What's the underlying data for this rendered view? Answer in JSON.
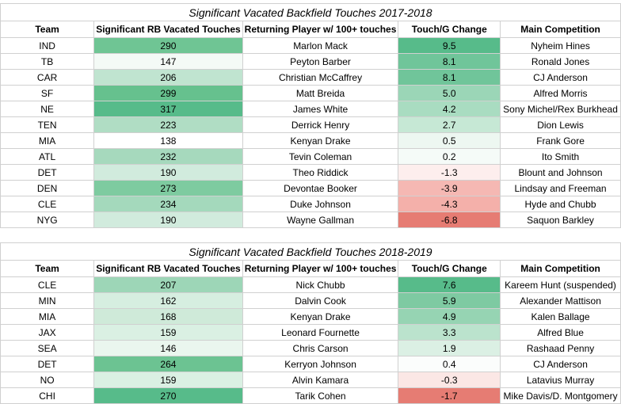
{
  "headers": [
    "Team",
    "Significant RB Vacated Touches",
    "Returning Player w/ 100+ touches",
    "Touch/G Change",
    "Main Competition"
  ],
  "tables": [
    {
      "title": "Significant Vacated Backfield Touches 2017-2018",
      "rows": [
        {
          "team": "IND",
          "vacated": "290",
          "player": "Marlon Mack",
          "change": "9.5",
          "competition": "Nyheim Hines",
          "vac_color": "#6fc594",
          "chg_color": "#57bb8a"
        },
        {
          "team": "TB",
          "vacated": "147",
          "player": "Peyton Barber",
          "change": "8.1",
          "competition": "Ronald Jones",
          "vac_color": "#f4faf6",
          "chg_color": "#70c59a"
        },
        {
          "team": "CAR",
          "vacated": "206",
          "player": "Christian McCaffrey",
          "change": "8.1",
          "competition": "CJ Anderson",
          "vac_color": "#c0e4d0",
          "chg_color": "#70c59a"
        },
        {
          "team": "SF",
          "vacated": "299",
          "player": "Matt Breida",
          "change": "5.0",
          "competition": "Alfred Morris",
          "vac_color": "#66c18e",
          "chg_color": "#9bd6b7"
        },
        {
          "team": "NE",
          "vacated": "317",
          "player": "James White",
          "change": "4.2",
          "competition": "Sony Michel/Rex Burkhead",
          "vac_color": "#57bb8a",
          "chg_color": "#a9dcc1"
        },
        {
          "team": "TEN",
          "vacated": "223",
          "player": "Derrick Henry",
          "change": "2.7",
          "competition": "Dion Lewis",
          "vac_color": "#b0ddc4",
          "chg_color": "#c6e8d5"
        },
        {
          "team": "MIA",
          "vacated": "138",
          "player": "Kenyan Drake",
          "change": "0.5",
          "competition": "Frank Gore",
          "vac_color": "#ffffff",
          "chg_color": "#edf7f1"
        },
        {
          "team": "ATL",
          "vacated": "232",
          "player": "Tevin Coleman",
          "change": "0.2",
          "competition": "Ito Smith",
          "vac_color": "#a6d9bd",
          "chg_color": "#f5fbf8"
        },
        {
          "team": "DET",
          "vacated": "190",
          "player": "Theo Riddick",
          "change": "-1.3",
          "competition": "Blount and Johnson",
          "vac_color": "#d1ebdd",
          "chg_color": "#fdeeed"
        },
        {
          "team": "DEN",
          "vacated": "273",
          "player": "Devontae Booker",
          "change": "-3.9",
          "competition": "Lindsay and Freeman",
          "vac_color": "#7ecba0",
          "chg_color": "#f5b8b3"
        },
        {
          "team": "CLE",
          "vacated": "234",
          "player": "Duke Johnson",
          "change": "-4.3",
          "competition": "Hyde and Chubb",
          "vac_color": "#a4d9bc",
          "chg_color": "#f4b0aa"
        },
        {
          "team": "NYG",
          "vacated": "190",
          "player": "Wayne Gallman",
          "change": "-6.8",
          "competition": "Saquon Barkley",
          "vac_color": "#d1ebdd",
          "chg_color": "#e67c73"
        }
      ]
    },
    {
      "title": "Significant Vacated Backfield Touches 2018-2019",
      "rows": [
        {
          "team": "CLE",
          "vacated": "207",
          "player": "Nick Chubb",
          "change": "7.6",
          "competition": "Kareem Hunt (suspended)",
          "vac_color": "#9dd6b7",
          "chg_color": "#57bb8a"
        },
        {
          "team": "MIN",
          "vacated": "162",
          "player": "Dalvin Cook",
          "change": "5.9",
          "competition": "Alexander Mattison",
          "vac_color": "#d6eee0",
          "chg_color": "#7ecaa2"
        },
        {
          "team": "MIA",
          "vacated": "168",
          "player": "Kenyan Drake",
          "change": "4.9",
          "competition": "Kalen Ballage",
          "vac_color": "#cfead9",
          "chg_color": "#96d4b3"
        },
        {
          "team": "JAX",
          "vacated": "159",
          "player": "Leonard Fournette",
          "change": "3.3",
          "competition": "Alfred Blue",
          "vac_color": "#daf0e3",
          "chg_color": "#bbe3cd"
        },
        {
          "team": "SEA",
          "vacated": "146",
          "player": "Chris Carson",
          "change": "1.9",
          "competition": "Rashaad Penny",
          "vac_color": "#eaf6ee",
          "chg_color": "#dbf0e4"
        },
        {
          "team": "DET",
          "vacated": "264",
          "player": "Kerryon Johnson",
          "change": "0.4",
          "competition": "CJ Anderson",
          "vac_color": "#6cc392",
          "chg_color": "#fbfdfc"
        },
        {
          "team": "NO",
          "vacated": "159",
          "player": "Alvin Kamara",
          "change": "-0.3",
          "competition": "Latavius Murray",
          "vac_color": "#daf0e3",
          "chg_color": "#fbe7e5"
        },
        {
          "team": "CHI",
          "vacated": "270",
          "player": "Tarik Cohen",
          "change": "-1.7",
          "competition": "Mike Davis/D. Montgomery",
          "vac_color": "#57bb8a",
          "chg_color": "#e67c73"
        }
      ]
    }
  ]
}
